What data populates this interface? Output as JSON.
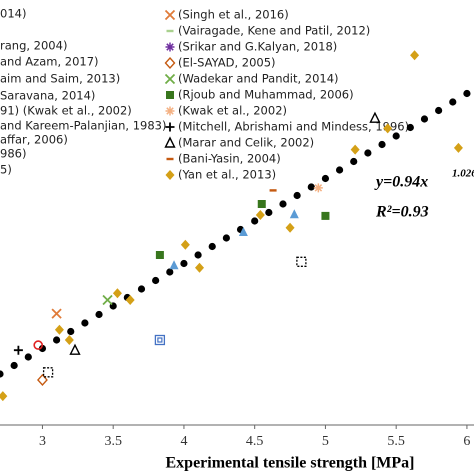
{
  "chart_data": {
    "type": "scatter",
    "xlabel": "Experimental tensile strength [MPa]",
    "xlim": [
      2.7,
      6.05
    ],
    "xticks": [
      3,
      3.5,
      4,
      4.5,
      5,
      5.5,
      6
    ],
    "ylim": [
      2,
      7
    ],
    "equation": "y=0.94x",
    "equation_exponent": "1.026",
    "r_squared": "R²=0.93",
    "cropped_legend": [
      "014)",
      "rang, 2004)",
      "and Azam, 2017)",
      "aim and Saim, 2013)",
      "Saravana, 2014)",
      "91) (Kwak et al., 2002)",
      "and Kareem-Palanjian, 1983)",
      "affar, 2006)",
      "986)",
      "5)"
    ],
    "series": [
      {
        "marker": "dot",
        "color": "#000000",
        "x": [
          2.7,
          2.8,
          2.9,
          3.0,
          3.1,
          3.2,
          3.3,
          3.4,
          3.5,
          3.6,
          3.7,
          3.8,
          3.9,
          4.0,
          4.1,
          4.2,
          4.3,
          4.4,
          4.5,
          4.6,
          4.7,
          4.8,
          4.9,
          5.0,
          5.1,
          5.2,
          5.3,
          5.4,
          5.5,
          5.6,
          5.7,
          5.8,
          5.9,
          6.0
        ],
        "values": [
          2.6,
          2.7,
          2.8,
          2.9,
          3.0,
          3.1,
          3.2,
          3.3,
          3.4,
          3.5,
          3.6,
          3.7,
          3.8,
          3.9,
          4.0,
          4.1,
          4.2,
          4.3,
          4.4,
          4.5,
          4.6,
          4.7,
          4.8,
          4.9,
          5.0,
          5.1,
          5.2,
          5.3,
          5.4,
          5.5,
          5.6,
          5.7,
          5.8,
          5.9
        ]
      },
      {
        "name": "(Singh et al., 2016)",
        "marker": "x",
        "color": "#e07b39",
        "x": [
          3.1
        ],
        "values": [
          3.31
        ]
      },
      {
        "name": "(Vairagade, Kene and Patil, 2012)",
        "marker": "dash",
        "color": "#a9d18e",
        "x": [],
        "values": []
      },
      {
        "name": "(Srikar and G.Kalyan, 2018)",
        "marker": "asterisk",
        "color": "#7030a0",
        "x": [],
        "values": []
      },
      {
        "name": "(El-SAYAD, 2005)",
        "marker": "diamond-open",
        "color": "#c55a11",
        "x": [
          3.0
        ],
        "values": [
          2.53
        ]
      },
      {
        "name": "(Wadekar and Pandit, 2014)",
        "marker": "x",
        "color": "#70ad47",
        "x": [
          3.46
        ],
        "values": [
          3.47
        ]
      },
      {
        "name": "(Rjoub and Muhammad, 2006)",
        "marker": "square",
        "color": "#38761d",
        "x": [
          3.83,
          4.55,
          5.0
        ],
        "values": [
          4.0,
          4.6,
          4.46
        ]
      },
      {
        "name": "(Kwak et al., 2002)",
        "marker": "asterisk",
        "color": "#f4b183",
        "x": [
          4.95
        ],
        "values": [
          4.79
        ]
      },
      {
        "name": "(Mitchell, Abrishami and Mindess, 1996)",
        "marker": "plus",
        "color": "#000000",
        "x": [
          2.83
        ],
        "values": [
          2.88
        ]
      },
      {
        "name": "(Marar and Celik, 2002)",
        "marker": "triangle-open",
        "color": "#000000",
        "x": [
          3.23,
          5.35
        ],
        "values": [
          2.88,
          5.61
        ]
      },
      {
        "name": "(Bani-Yasin, 2004)",
        "marker": "dash",
        "color": "#c55a11",
        "x": [
          4.63
        ],
        "values": [
          4.76
        ]
      },
      {
        "name": "(Yan et al., 2013)",
        "marker": "diamond",
        "color": "#d4a017",
        "x": [
          2.72,
          3.12,
          3.19,
          3.53,
          3.62,
          4.01,
          4.11,
          4.54,
          4.75,
          5.21,
          5.44,
          5.63,
          5.94
        ],
        "values": [
          2.34,
          3.12,
          3.0,
          3.55,
          3.47,
          4.12,
          3.85,
          4.47,
          4.32,
          5.24,
          5.49,
          6.35,
          5.26
        ]
      },
      {
        "marker": "circle-open",
        "color": "#e02020",
        "x": [
          2.97
        ],
        "values": [
          2.94
        ]
      },
      {
        "marker": "dashed-square",
        "color": "#000000",
        "x": [
          3.04,
          4.83
        ],
        "values": [
          2.62,
          3.92
        ]
      },
      {
        "marker": "double-square",
        "color": "#4472c4",
        "x": [
          3.83
        ],
        "values": [
          3.0
        ]
      },
      {
        "marker": "triangle",
        "color": "#5b9bd5",
        "x": [
          3.93,
          4.42,
          4.78
        ],
        "values": [
          3.88,
          4.27,
          4.48
        ]
      }
    ]
  }
}
